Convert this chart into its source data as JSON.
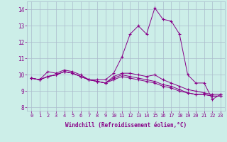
{
  "xlabel": "Windchill (Refroidissement éolien,°C)",
  "background_color": "#cceee8",
  "grid_color": "#aabbcc",
  "line_color": "#880088",
  "xlim": [
    -0.5,
    23.5
  ],
  "ylim": [
    7.8,
    14.5
  ],
  "yticks": [
    8,
    9,
    10,
    11,
    12,
    13,
    14
  ],
  "xticks": [
    0,
    1,
    2,
    3,
    4,
    5,
    6,
    7,
    8,
    9,
    10,
    11,
    12,
    13,
    14,
    15,
    16,
    17,
    18,
    19,
    20,
    21,
    22,
    23
  ],
  "series": [
    [
      9.8,
      9.7,
      10.2,
      10.1,
      10.3,
      10.2,
      10.0,
      9.7,
      9.7,
      9.7,
      10.1,
      11.1,
      12.5,
      13.0,
      12.5,
      14.1,
      13.4,
      13.3,
      12.5,
      10.0,
      9.5,
      9.5,
      8.5,
      8.8
    ],
    [
      9.8,
      9.7,
      9.9,
      10.0,
      10.2,
      10.1,
      9.9,
      9.7,
      9.6,
      9.5,
      9.9,
      10.1,
      10.1,
      10.0,
      9.9,
      10.0,
      9.7,
      9.5,
      9.3,
      9.1,
      9.0,
      8.9,
      8.8,
      8.8
    ],
    [
      9.8,
      9.7,
      9.9,
      10.0,
      10.2,
      10.1,
      9.9,
      9.7,
      9.6,
      9.5,
      9.8,
      10.0,
      9.9,
      9.8,
      9.7,
      9.6,
      9.4,
      9.3,
      9.1,
      8.9,
      8.8,
      8.8,
      8.7,
      8.7
    ],
    [
      9.8,
      9.7,
      9.9,
      10.0,
      10.2,
      10.1,
      9.9,
      9.7,
      9.6,
      9.5,
      9.7,
      9.9,
      9.8,
      9.7,
      9.6,
      9.5,
      9.3,
      9.2,
      9.0,
      8.9,
      8.8,
      8.8,
      8.7,
      8.7
    ]
  ],
  "tick_fontsize": 5.0,
  "xlabel_fontsize": 5.5
}
